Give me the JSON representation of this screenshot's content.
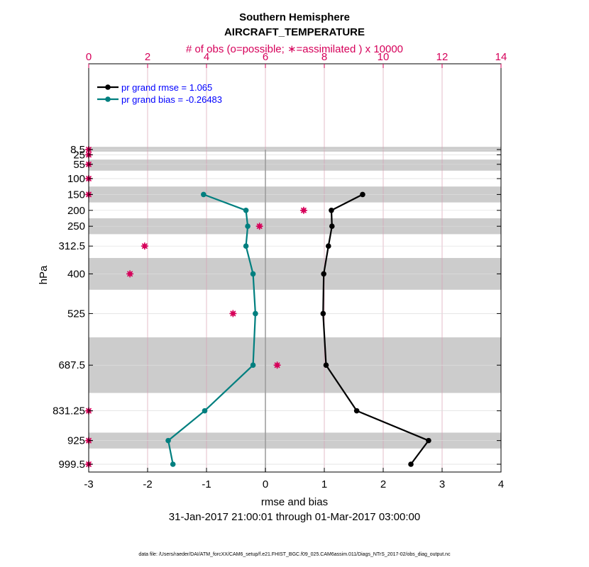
{
  "chart_data": {
    "type": "line",
    "title": "Southern Hemisphere",
    "subtitle": "AIRCRAFT_TEMPERATURE",
    "top_axis_label": "# of obs (o=possible; ∗=assimilated ) x 10000",
    "xlabel": "rmse and bias",
    "ylabel": "hPa",
    "date_range": "31-Jan-2017 21:00:01 through 01-Mar-2017 03:00:00",
    "footer": "data file: /Users/raeder/DAI/ATM_forcXX/CAM6_setup/f.e21.FHIST_BGC.f09_025.CAM6assim.011/Diags_NTrS_2017-02/obs_diag_output.nc",
    "xlim": [
      -3,
      4
    ],
    "x_ticks": [
      "-3",
      "-2",
      "-1",
      "0",
      "1",
      "2",
      "3",
      "4"
    ],
    "top_xlim": [
      0,
      14
    ],
    "top_ticks": [
      "0",
      "2",
      "4",
      "6",
      "8",
      "10",
      "12",
      "14"
    ],
    "colors": {
      "rmse": "#000000",
      "bias": "#007f7f",
      "obs": "#d6005a",
      "band": "#cccccc",
      "legend_text": "#0000ff"
    },
    "levels": [
      {
        "label": "8.5",
        "p": 8.5
      },
      {
        "label": "25",
        "p": 25
      },
      {
        "label": "55",
        "p": 55
      },
      {
        "label": "100",
        "p": 100
      },
      {
        "label": "150",
        "p": 150
      },
      {
        "label": "200",
        "p": 200
      },
      {
        "label": "250",
        "p": 250
      },
      {
        "label": "312.5",
        "p": 312.5
      },
      {
        "label": "400",
        "p": 400
      },
      {
        "label": "525",
        "p": 525
      },
      {
        "label": "687.5",
        "p": 687.5
      },
      {
        "label": "831.25",
        "p": 831.25
      },
      {
        "label": "925",
        "p": 925
      },
      {
        "label": "999.5",
        "p": 999.5
      }
    ],
    "bands": [
      [
        0,
        15
      ],
      [
        40,
        75
      ],
      [
        125,
        175
      ],
      [
        225,
        275
      ],
      [
        350,
        450
      ],
      [
        600,
        775
      ],
      [
        900,
        950
      ]
    ],
    "series": [
      {
        "name": "pr grand rmse = 1.065",
        "key": "rmse",
        "points": [
          {
            "p": 150,
            "x": 1.65
          },
          {
            "p": 200,
            "x": 1.12
          },
          {
            "p": 250,
            "x": 1.13
          },
          {
            "p": 312.5,
            "x": 1.07
          },
          {
            "p": 400,
            "x": 0.99
          },
          {
            "p": 525,
            "x": 0.98
          },
          {
            "p": 687.5,
            "x": 1.03
          },
          {
            "p": 831.25,
            "x": 1.55
          },
          {
            "p": 925,
            "x": 2.77
          },
          {
            "p": 999.5,
            "x": 2.47
          }
        ]
      },
      {
        "name": "pr grand bias = -0.26483",
        "key": "bias",
        "points": [
          {
            "p": 150,
            "x": -1.05
          },
          {
            "p": 200,
            "x": -0.33
          },
          {
            "p": 250,
            "x": -0.3
          },
          {
            "p": 312.5,
            "x": -0.33
          },
          {
            "p": 400,
            "x": -0.21
          },
          {
            "p": 525,
            "x": -0.17
          },
          {
            "p": 687.5,
            "x": -0.21
          },
          {
            "p": 831.25,
            "x": -1.03
          },
          {
            "p": 925,
            "x": -1.65
          },
          {
            "p": 999.5,
            "x": -1.57
          }
        ]
      }
    ],
    "obs_assimilated": [
      {
        "p": 8.5,
        "count": 0
      },
      {
        "p": 25,
        "count": 0
      },
      {
        "p": 55,
        "count": 0
      },
      {
        "p": 100,
        "count": 0
      },
      {
        "p": 150,
        "count": 0
      },
      {
        "p": 200,
        "count": 7.3
      },
      {
        "p": 250,
        "count": 5.8
      },
      {
        "p": 312.5,
        "count": 1.9
      },
      {
        "p": 400,
        "count": 1.4
      },
      {
        "p": 525,
        "count": 4.9
      },
      {
        "p": 687.5,
        "count": 6.4
      },
      {
        "p": 831.25,
        "count": 0
      },
      {
        "p": 925,
        "count": 0
      },
      {
        "p": 999.5,
        "count": 0
      }
    ]
  }
}
